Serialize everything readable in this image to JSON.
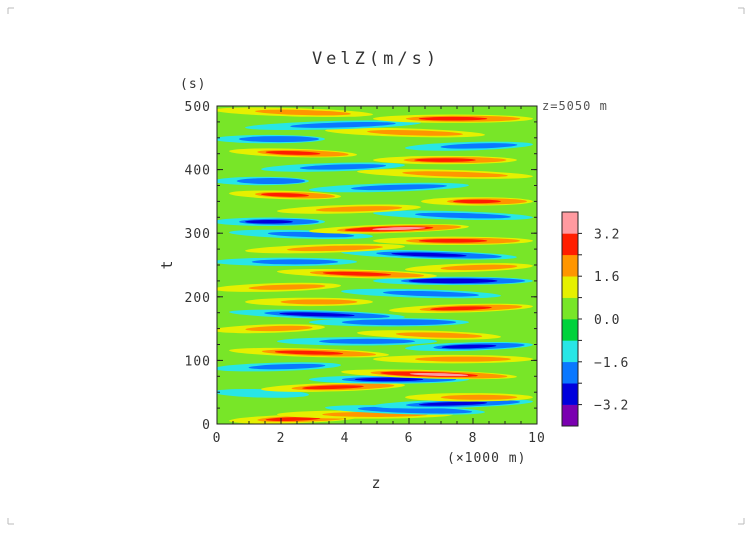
{
  "chart_data": {
    "type": "heatmap",
    "title": "VelZ(m/s)",
    "xlabel": "z",
    "x_unit": "(×1000 m)",
    "ylabel": "t",
    "y_unit": "(s)",
    "annotation": "z=5050 m",
    "xlim": [
      0,
      10
    ],
    "ylim": [
      0,
      500
    ],
    "x_ticks": [
      0,
      2,
      4,
      6,
      8,
      10
    ],
    "y_ticks": [
      0,
      100,
      200,
      300,
      400,
      500
    ],
    "colorbar": {
      "levels": [
        -4.0,
        -3.2,
        -2.4,
        -1.6,
        -0.8,
        0.0,
        0.8,
        1.6,
        2.4,
        3.2,
        4.0
      ],
      "labels": [
        "3.2",
        "1.6",
        "0.0",
        "−1.6",
        "−3.2"
      ],
      "label_values": [
        3.2,
        1.6,
        0.0,
        -1.6,
        -3.2
      ],
      "colors": [
        "#7a00b0",
        "#0000dc",
        "#0a78ff",
        "#28e6e6",
        "#00d23c",
        "#78e628",
        "#e6f000",
        "#ff9600",
        "#ff1e00",
        "#ff9aa0"
      ]
    },
    "streaks": [
      {
        "y": 8,
        "x0": 0.5,
        "x1": 4.5,
        "v": 2.6
      },
      {
        "y": 15,
        "x0": 2.0,
        "x1": 7.5,
        "v": 1.8
      },
      {
        "y": 22,
        "x0": 3.5,
        "x1": 8.5,
        "v": -2.4
      },
      {
        "y": 32,
        "x0": 5.0,
        "x1": 10.0,
        "v": -3.0
      },
      {
        "y": 42,
        "x0": 6.0,
        "x1": 10.0,
        "v": 2.0
      },
      {
        "y": 48,
        "x0": 0.0,
        "x1": 3.0,
        "v": -1.6
      },
      {
        "y": 58,
        "x0": 1.5,
        "x1": 6.0,
        "v": 2.4
      },
      {
        "y": 70,
        "x0": 3.0,
        "x1": 8.0,
        "v": -2.6
      },
      {
        "y": 78,
        "x0": 4.0,
        "x1": 9.5,
        "v": 3.2
      },
      {
        "y": 90,
        "x0": 0.0,
        "x1": 4.0,
        "v": -2.0
      },
      {
        "y": 102,
        "x0": 5.0,
        "x1": 10.0,
        "v": 1.8
      },
      {
        "y": 112,
        "x0": 0.5,
        "x1": 5.5,
        "v": 2.6
      },
      {
        "y": 122,
        "x0": 6.0,
        "x1": 10.0,
        "v": -2.8
      },
      {
        "y": 130,
        "x0": 2.0,
        "x1": 7.0,
        "v": -1.8
      },
      {
        "y": 140,
        "x0": 4.5,
        "x1": 9.0,
        "v": 2.2
      },
      {
        "y": 150,
        "x0": 0.0,
        "x1": 3.5,
        "v": 1.6
      },
      {
        "y": 160,
        "x0": 3.0,
        "x1": 8.0,
        "v": -2.4
      },
      {
        "y": 172,
        "x0": 0.5,
        "x1": 6.0,
        "v": -2.8
      },
      {
        "y": 182,
        "x0": 5.5,
        "x1": 10.0,
        "v": 2.4
      },
      {
        "y": 192,
        "x0": 1.0,
        "x1": 5.0,
        "v": 2.0
      },
      {
        "y": 205,
        "x0": 4.0,
        "x1": 9.0,
        "v": -1.8
      },
      {
        "y": 215,
        "x0": 0.0,
        "x1": 4.0,
        "v": 1.8
      },
      {
        "y": 225,
        "x0": 5.0,
        "x1": 10.0,
        "v": -3.2
      },
      {
        "y": 236,
        "x0": 2.0,
        "x1": 7.0,
        "v": 2.8
      },
      {
        "y": 246,
        "x0": 6.0,
        "x1": 10.0,
        "v": 2.2
      },
      {
        "y": 255,
        "x0": 0.0,
        "x1": 4.5,
        "v": -2.2
      },
      {
        "y": 266,
        "x0": 4.0,
        "x1": 9.5,
        "v": -2.6
      },
      {
        "y": 276,
        "x0": 1.0,
        "x1": 6.0,
        "v": 1.8
      },
      {
        "y": 288,
        "x0": 5.0,
        "x1": 10.0,
        "v": 2.6
      },
      {
        "y": 298,
        "x0": 0.5,
        "x1": 5.0,
        "v": -1.8
      },
      {
        "y": 307,
        "x0": 3.0,
        "x1": 8.0,
        "v": 3.2
      },
      {
        "y": 318,
        "x0": 0.0,
        "x1": 3.5,
        "v": -2.6
      },
      {
        "y": 328,
        "x0": 5.0,
        "x1": 10.0,
        "v": -2.2
      },
      {
        "y": 338,
        "x0": 2.0,
        "x1": 6.5,
        "v": 1.8
      },
      {
        "y": 350,
        "x0": 6.5,
        "x1": 10.0,
        "v": 2.4
      },
      {
        "y": 360,
        "x0": 0.5,
        "x1": 4.0,
        "v": 2.6
      },
      {
        "y": 372,
        "x0": 3.0,
        "x1": 8.0,
        "v": -1.8
      },
      {
        "y": 382,
        "x0": 0.0,
        "x1": 3.0,
        "v": -2.4
      },
      {
        "y": 393,
        "x0": 4.5,
        "x1": 10.0,
        "v": 2.0
      },
      {
        "y": 404,
        "x0": 1.5,
        "x1": 6.0,
        "v": -2.0
      },
      {
        "y": 415,
        "x0": 5.0,
        "x1": 9.5,
        "v": 2.8
      },
      {
        "y": 426,
        "x0": 0.5,
        "x1": 4.5,
        "v": 2.4
      },
      {
        "y": 437,
        "x0": 6.0,
        "x1": 10.0,
        "v": -1.8
      },
      {
        "y": 448,
        "x0": 0.0,
        "x1": 3.5,
        "v": -2.4
      },
      {
        "y": 458,
        "x0": 3.5,
        "x1": 8.5,
        "v": 1.8
      },
      {
        "y": 470,
        "x0": 1.0,
        "x1": 6.5,
        "v": -2.2
      },
      {
        "y": 480,
        "x0": 5.0,
        "x1": 10.0,
        "v": 2.4
      },
      {
        "y": 490,
        "x0": 0.0,
        "x1": 5.0,
        "v": 2.0
      }
    ]
  }
}
